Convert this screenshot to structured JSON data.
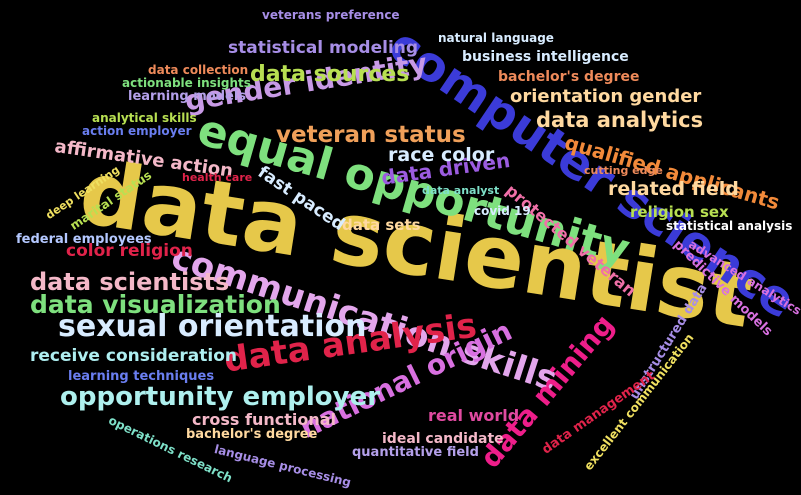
{
  "words": [
    {
      "text": "data scientist",
      "color": "#e6c84a"
    },
    {
      "text": "computer science",
      "color": "#3b3bd8"
    },
    {
      "text": "equal opportunity",
      "color": "#7ee07e"
    },
    {
      "text": "communication skills",
      "color": "#e3a6ec"
    },
    {
      "text": "data analysis",
      "color": "#e0234a"
    },
    {
      "text": "sexual orientation",
      "color": "#d8ecff"
    },
    {
      "text": "national origin",
      "color": "#d870e0"
    },
    {
      "text": "opportunity employer",
      "color": "#aef0ee"
    },
    {
      "text": "gender identity",
      "color": "#c89ae6"
    },
    {
      "text": "data visualization",
      "color": "#7ee07e"
    },
    {
      "text": "data scientists",
      "color": "#f4b8c8"
    },
    {
      "text": "data mining",
      "color": "#ee1e8a"
    },
    {
      "text": "veteran status",
      "color": "#f0a05a"
    },
    {
      "text": "data sources",
      "color": "#b8e052"
    },
    {
      "text": "qualified applicants",
      "color": "#f28a3a"
    },
    {
      "text": "data analytics",
      "color": "#ffd9a0"
    },
    {
      "text": "data driven",
      "color": "#9b5ce0"
    },
    {
      "text": "race color",
      "color": "#d8ecff"
    },
    {
      "text": "protected veteran",
      "color": "#f070a8"
    },
    {
      "text": "related field",
      "color": "#ffd9a0"
    },
    {
      "text": "orientation gender",
      "color": "#ffd9a0"
    },
    {
      "text": "fast paced",
      "color": "#d8ecff"
    },
    {
      "text": "affirmative action",
      "color": "#f4b8c8"
    },
    {
      "text": "statistical modeling",
      "color": "#a78ee6"
    },
    {
      "text": "receive consideration",
      "color": "#aeeef0"
    },
    {
      "text": "color religion",
      "color": "#e0234a"
    },
    {
      "text": "religion sex",
      "color": "#b8e052"
    },
    {
      "text": "data sets",
      "color": "#ffd9a0"
    },
    {
      "text": "cross functional",
      "color": "#f4b8c8"
    },
    {
      "text": "real world",
      "color": "#e04aa0"
    },
    {
      "text": "ideal candidate",
      "color": "#f4b8c8"
    },
    {
      "text": "predictive models",
      "color": "#d870e0"
    },
    {
      "text": "unstructured data",
      "color": "#a78ee6"
    },
    {
      "text": "data management",
      "color": "#e0234a"
    },
    {
      "text": "business intelligence",
      "color": "#d8ecff"
    },
    {
      "text": "bachelor's degree",
      "color": "#ee8a5a"
    },
    {
      "text": "learning models",
      "color": "#b4a0ea"
    },
    {
      "text": "learning techniques",
      "color": "#6a7ef0"
    },
    {
      "text": "bachelor's degree",
      "color": "#ffd9a0"
    },
    {
      "text": "quantitative field",
      "color": "#b4a0ea"
    },
    {
      "text": "language processing",
      "color": "#a78ee6"
    },
    {
      "text": "operations research",
      "color": "#7ee0c8"
    },
    {
      "text": "federal employees",
      "color": "#b4c8ff"
    },
    {
      "text": "advanced analytics",
      "color": "#d870e0"
    },
    {
      "text": "statistical analysis",
      "color": "#ffffff"
    },
    {
      "text": "excellent communication",
      "color": "#f0e060"
    },
    {
      "text": "veterans preference",
      "color": "#a78ee6"
    },
    {
      "text": "natural language",
      "color": "#d8ecff"
    },
    {
      "text": "data collection",
      "color": "#ee8a5a"
    },
    {
      "text": "actionable insights",
      "color": "#7ee07e"
    },
    {
      "text": "analytical skills",
      "color": "#b8e052"
    },
    {
      "text": "action employer",
      "color": "#6a7ef0"
    },
    {
      "text": "health care",
      "color": "#e0234a"
    },
    {
      "text": "cutting edge",
      "color": "#ee8a5a"
    },
    {
      "text": "data analyst",
      "color": "#7ee0c8"
    },
    {
      "text": "covid 19",
      "color": "#d8ecff"
    },
    {
      "text": "deep learning",
      "color": "#f0e060"
    },
    {
      "text": "marital status",
      "color": "#b8e052"
    }
  ]
}
